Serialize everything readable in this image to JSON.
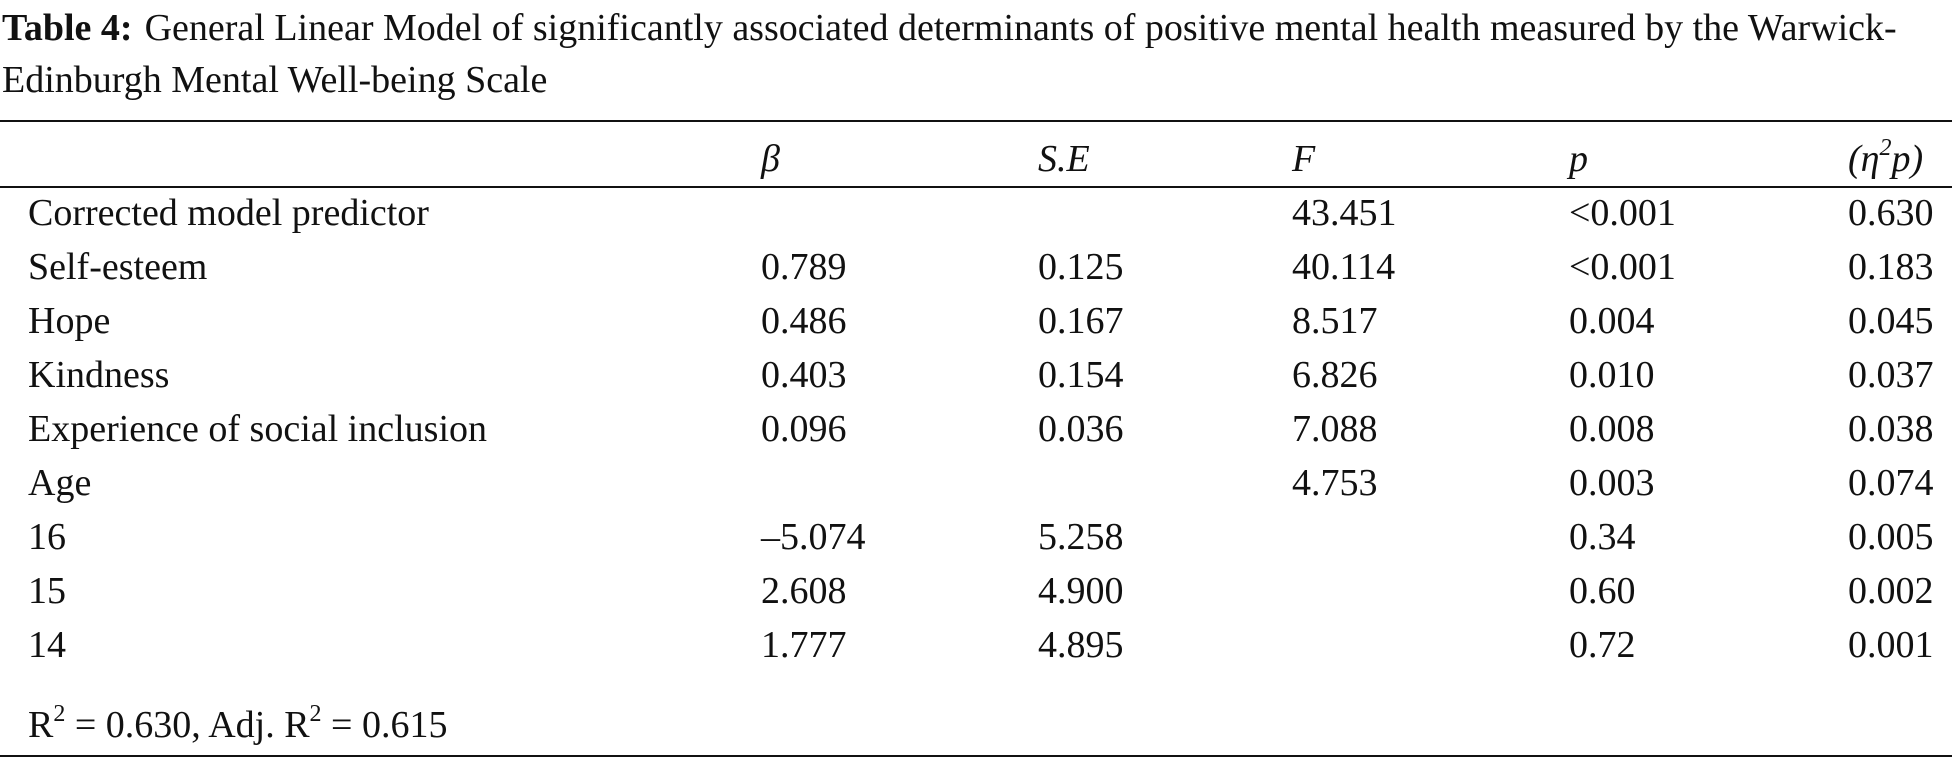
{
  "caption": {
    "label": "Table 4:",
    "text": "General Linear Model of significantly associated determinants of positive mental health measured by the Warwick-Edinburgh Mental Well-being Scale"
  },
  "table": {
    "headers": [
      "",
      "β",
      "S.E",
      "F",
      "p",
      "(η2p)"
    ],
    "rows": [
      [
        "Corrected model predictor",
        "",
        "",
        "43.451",
        "<0.001",
        "0.630"
      ],
      [
        "Self-esteem",
        "0.789",
        "0.125",
        "40.114",
        "<0.001",
        "0.183"
      ],
      [
        "Hope",
        "0.486",
        "0.167",
        "8.517",
        "0.004",
        "0.045"
      ],
      [
        "Kindness",
        "0.403",
        "0.154",
        "6.826",
        "0.010",
        "0.037"
      ],
      [
        "Experience of social inclusion",
        "0.096",
        "0.036",
        "7.088",
        "0.008",
        "0.038"
      ],
      [
        "Age",
        "",
        "",
        "4.753",
        "0.003",
        "0.074"
      ],
      [
        "16",
        "–5.074",
        "5.258",
        "",
        "0.34",
        "0.005"
      ],
      [
        "15",
        "2.608",
        "4.900",
        "",
        "0.60",
        "0.002"
      ],
      [
        "14",
        "1.777",
        "4.895",
        "",
        "0.72",
        "0.001"
      ]
    ]
  },
  "footnote": {
    "r2_prefix": "R",
    "r2_exp": "2",
    "r2_value": " = 0.630, Adj. R",
    "adj_exp": "2",
    "adj_value": " = 0.615"
  }
}
